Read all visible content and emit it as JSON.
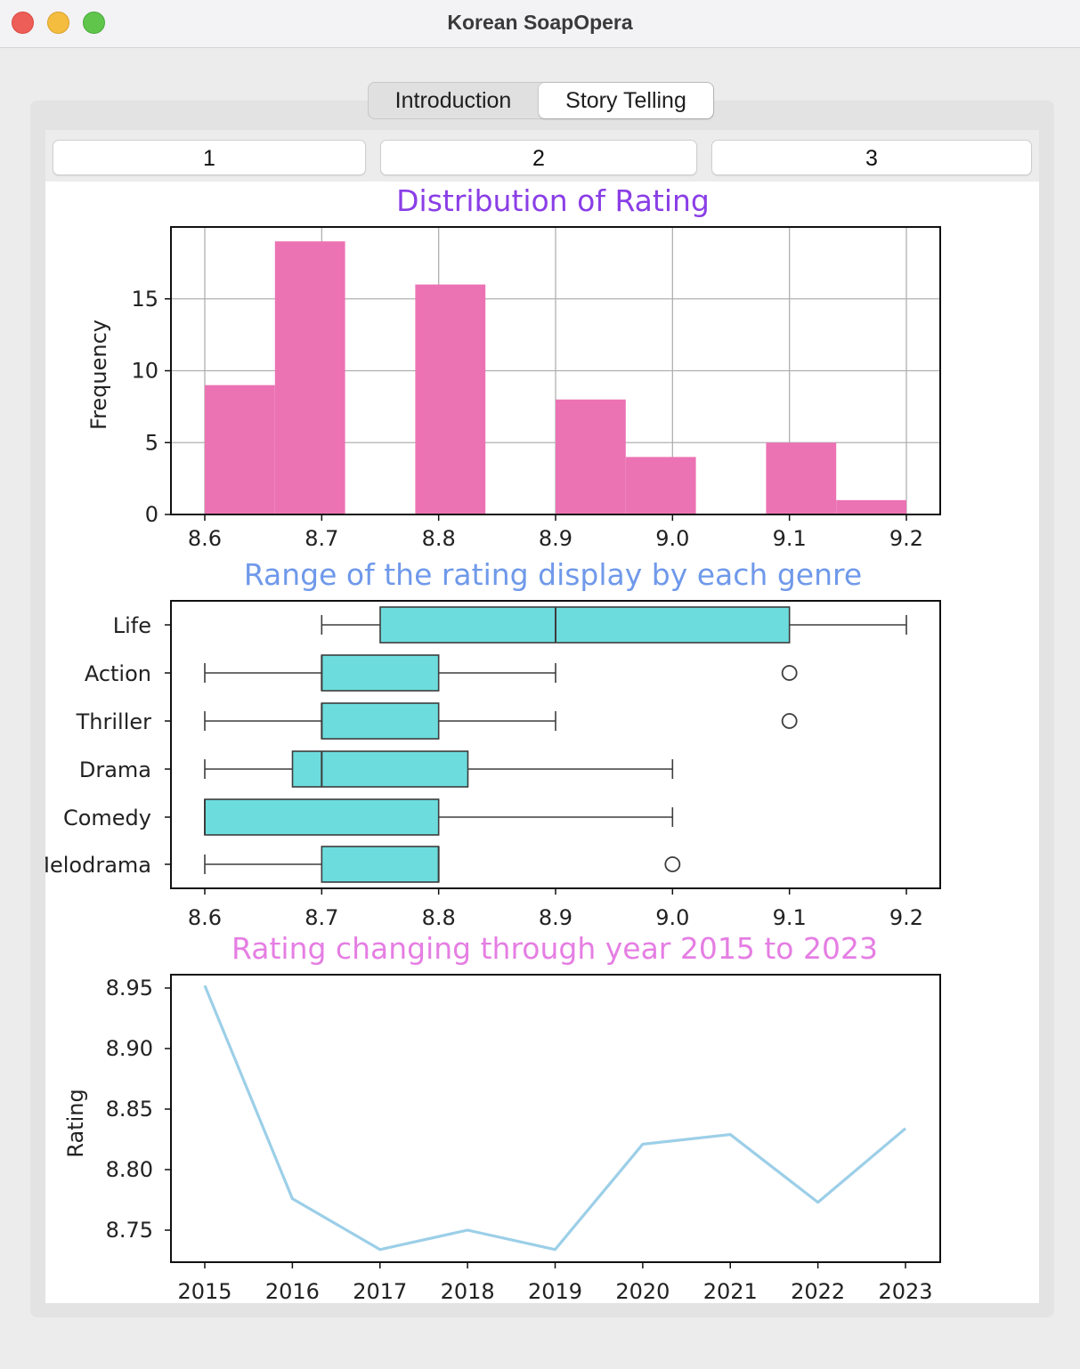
{
  "window": {
    "title": "Korean SoapOpera"
  },
  "tabs": [
    {
      "label": "Introduction",
      "selected": false
    },
    {
      "label": "Story Telling",
      "selected": true
    }
  ],
  "page_buttons": [
    "1",
    "2",
    "3"
  ],
  "colors": {
    "histogram_bars": "#ec73b3",
    "boxes": "#6ddcdd",
    "line": "#9ccfe8",
    "title1": "#8a3ee6",
    "title2": "#6f99ea",
    "title3": "#e57ee3"
  },
  "chart_data": [
    {
      "type": "histogram",
      "title": "Distribution of Rating",
      "xlabel": "",
      "ylabel": "Frequency",
      "xlim": [
        8.6,
        9.2
      ],
      "ylim": [
        0,
        20
      ],
      "grid": true,
      "x_ticks": [
        "8.6",
        "8.7",
        "8.8",
        "8.9",
        "9.0",
        "9.1",
        "9.2"
      ],
      "y_ticks": [
        "0",
        "5",
        "10",
        "15"
      ],
      "bins": [
        {
          "from": 8.6,
          "to": 8.66,
          "count": 9
        },
        {
          "from": 8.66,
          "to": 8.72,
          "count": 19
        },
        {
          "from": 8.72,
          "to": 8.78,
          "count": 0
        },
        {
          "from": 8.78,
          "to": 8.84,
          "count": 16
        },
        {
          "from": 8.84,
          "to": 8.9,
          "count": 0
        },
        {
          "from": 8.9,
          "to": 8.96,
          "count": 8
        },
        {
          "from": 8.96,
          "to": 9.02,
          "count": 4
        },
        {
          "from": 9.02,
          "to": 9.08,
          "count": 0
        },
        {
          "from": 9.08,
          "to": 9.14,
          "count": 5
        },
        {
          "from": 9.14,
          "to": 9.2,
          "count": 1
        }
      ]
    },
    {
      "type": "box",
      "title": "Range of the rating display by each genre",
      "xlabel": "",
      "ylabel": "",
      "xlim": [
        8.6,
        9.2
      ],
      "grid": false,
      "x_ticks": [
        "8.6",
        "8.7",
        "8.8",
        "8.9",
        "9.0",
        "9.1",
        "9.2"
      ],
      "categories": [
        "Life",
        "Action",
        "Thriller",
        "Drama",
        "Comedy",
        "Melodrama"
      ],
      "boxes": [
        {
          "genre": "Life",
          "whisker_low": 8.7,
          "q1": 8.75,
          "median": 8.9,
          "q3": 9.1,
          "whisker_high": 9.2,
          "outliers": []
        },
        {
          "genre": "Action",
          "whisker_low": 8.6,
          "q1": 8.7,
          "median": 8.7,
          "q3": 8.8,
          "whisker_high": 8.9,
          "outliers": [
            9.1
          ]
        },
        {
          "genre": "Thriller",
          "whisker_low": 8.6,
          "q1": 8.7,
          "median": 8.7,
          "q3": 8.8,
          "whisker_high": 8.9,
          "outliers": [
            9.1
          ]
        },
        {
          "genre": "Drama",
          "whisker_low": 8.6,
          "q1": 8.675,
          "median": 8.7,
          "q3": 8.825,
          "whisker_high": 9.0,
          "outliers": []
        },
        {
          "genre": "Comedy",
          "whisker_low": 8.6,
          "q1": 8.6,
          "median": 8.6,
          "q3": 8.8,
          "whisker_high": 9.0,
          "outliers": []
        },
        {
          "genre": "Melodrama",
          "whisker_low": 8.6,
          "q1": 8.7,
          "median": 8.8,
          "q3": 8.8,
          "whisker_high": 8.8,
          "outliers": [
            9.0
          ]
        }
      ]
    },
    {
      "type": "line",
      "title": "Rating changing through year 2015 to 2023",
      "xlabel": "",
      "ylabel": "Rating",
      "xlim": [
        2014.6,
        2023.4
      ],
      "ylim": [
        8.722,
        8.961
      ],
      "grid": false,
      "x_ticks": [
        "2015",
        "2016",
        "2017",
        "2018",
        "2019",
        "2020",
        "2021",
        "2022",
        "2023"
      ],
      "y_ticks": [
        "8.75",
        "8.80",
        "8.85",
        "8.90",
        "8.95"
      ],
      "x": [
        2015,
        2016,
        2017,
        2018,
        2019,
        2020,
        2021,
        2022,
        2023
      ],
      "y": [
        8.952,
        8.776,
        8.734,
        8.75,
        8.734,
        8.821,
        8.829,
        8.773,
        8.834
      ]
    }
  ]
}
